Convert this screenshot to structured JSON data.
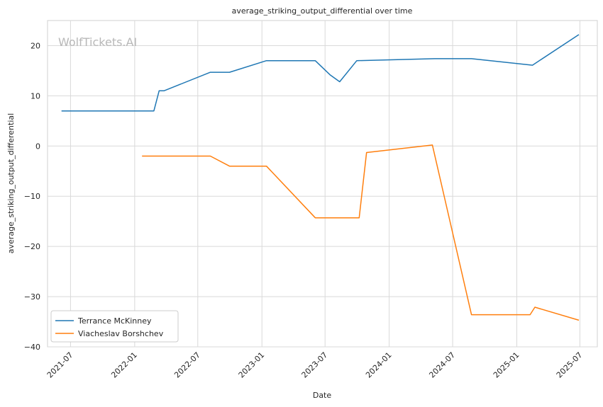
{
  "chart_data": {
    "type": "line",
    "title": "average_striking_output_differential over time",
    "xlabel": "Date",
    "ylabel": "average_striking_output_differential",
    "watermark": "WolfTickets.AI",
    "ylim": [
      -40,
      25
    ],
    "xlim": [
      "2021-04-26",
      "2025-08-20"
    ],
    "x_ticks": [
      "2021-07",
      "2022-01",
      "2022-07",
      "2023-01",
      "2023-07",
      "2024-01",
      "2024-07",
      "2025-01",
      "2025-07"
    ],
    "y_ticks": [
      -40,
      -30,
      -20,
      -10,
      0,
      10,
      20
    ],
    "grid": true,
    "legend_position": "bottom-left",
    "series": [
      {
        "name": "Terrance McKinney",
        "color": "#1f77b4",
        "points": [
          [
            "2021-06-05",
            7.0
          ],
          [
            "2022-02-25",
            7.0
          ],
          [
            "2022-03-12",
            11.0
          ],
          [
            "2022-03-26",
            11.0
          ],
          [
            "2022-08-06",
            14.7
          ],
          [
            "2022-09-30",
            14.7
          ],
          [
            "2023-01-14",
            17.0
          ],
          [
            "2023-06-03",
            17.0
          ],
          [
            "2023-07-15",
            14.2
          ],
          [
            "2023-08-12",
            12.8
          ],
          [
            "2023-09-30",
            17.0
          ],
          [
            "2024-05-11",
            17.4
          ],
          [
            "2024-08-24",
            17.4
          ],
          [
            "2025-02-15",
            16.1
          ],
          [
            "2025-06-28",
            22.2
          ]
        ]
      },
      {
        "name": "Viacheslav Borshchev",
        "color": "#ff7f0e",
        "points": [
          [
            "2022-01-22",
            -2.0
          ],
          [
            "2022-08-06",
            -2.0
          ],
          [
            "2022-09-30",
            -4.0
          ],
          [
            "2023-01-14",
            -4.0
          ],
          [
            "2023-06-03",
            -14.3
          ],
          [
            "2023-10-07",
            -14.3
          ],
          [
            "2023-10-28",
            -1.3
          ],
          [
            "2024-05-04",
            0.2
          ],
          [
            "2024-08-24",
            -33.6
          ],
          [
            "2025-02-08",
            -33.6
          ],
          [
            "2025-02-22",
            -32.1
          ],
          [
            "2025-06-28",
            -34.7
          ]
        ]
      }
    ]
  }
}
